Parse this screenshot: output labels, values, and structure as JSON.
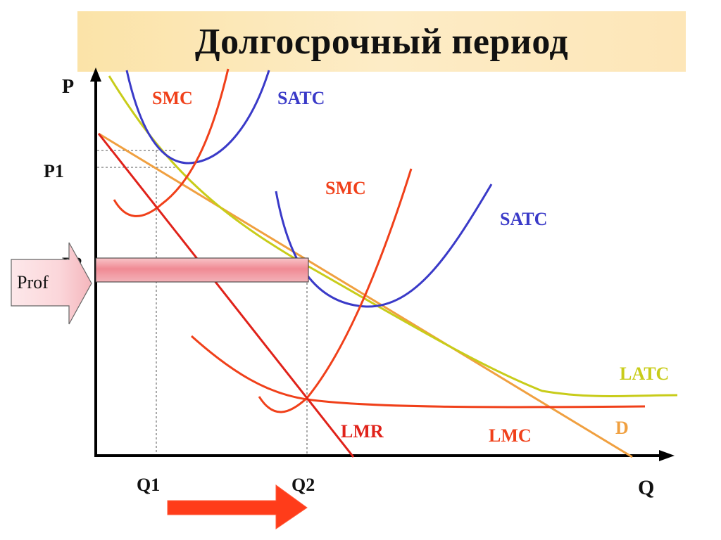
{
  "title": "Долгосрочный период",
  "axes": {
    "y_label": "P",
    "x_label": "Q",
    "y_ticks": [
      "P1",
      "P2"
    ],
    "x_ticks": [
      "Q1",
      "Q2"
    ]
  },
  "curves": {
    "smc_1": "SMC",
    "satc_1": "SATC",
    "smc_2": "SMC",
    "satc_2": "SATC",
    "latc": "LATC",
    "demand": "D",
    "lmr": "LMR",
    "lmc": "LMC"
  },
  "callout": {
    "label": "Prof"
  },
  "colors": {
    "smc": "#f0401a",
    "satc": "#3a3ac8",
    "latc": "#c8cc1a",
    "demand": "#f0a040",
    "lmr": "#e0221a",
    "lmc": "#f0401a",
    "profit_box": "#f4a0a8",
    "arrow": "#ff3c1a",
    "title_band": "#fbe3a8"
  }
}
